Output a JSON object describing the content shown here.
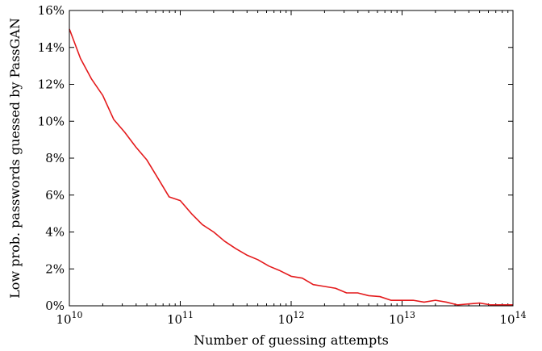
{
  "chart_data": {
    "type": "line",
    "title": "",
    "xlabel": "Number of guessing attempts",
    "ylabel": "Low prob. passwords guessed by PassGAN",
    "x_scale": "log",
    "xlim": [
      10000000000.0,
      100000000000000.0
    ],
    "ylim": [
      0,
      16
    ],
    "x_ticks": [
      {
        "base": "10",
        "exp": "10",
        "value": 10000000000.0
      },
      {
        "base": "10",
        "exp": "11",
        "value": 100000000000.0
      },
      {
        "base": "10",
        "exp": "12",
        "value": 1000000000000.0
      },
      {
        "base": "10",
        "exp": "13",
        "value": 10000000000000.0
      },
      {
        "base": "10",
        "exp": "14",
        "value": 100000000000000.0
      }
    ],
    "y_ticks": [
      {
        "label": "0%",
        "value": 0
      },
      {
        "label": "2%",
        "value": 2
      },
      {
        "label": "4%",
        "value": 4
      },
      {
        "label": "6%",
        "value": 6
      },
      {
        "label": "8%",
        "value": 8
      },
      {
        "label": "10%",
        "value": 10
      },
      {
        "label": "12%",
        "value": 12
      },
      {
        "label": "14%",
        "value": 14
      },
      {
        "label": "16%",
        "value": 16
      }
    ],
    "grid": false,
    "line_color": "#e41a1c",
    "series": [
      {
        "x": [
          10000000000.0,
          12600000000.0,
          15800000000.0,
          20000000000.0,
          25100000000.0,
          31600000000.0,
          39800000000.0,
          50000000000.0,
          63100000000.0,
          79400000000.0,
          100000000000.0,
          126000000000.0,
          158000000000.0,
          200000000000.0,
          251000000000.0,
          316000000000.0,
          398000000000.0,
          500000000000.0,
          631000000000.0,
          794000000000.0,
          1000000000000.0,
          1260000000000.0,
          1580000000000.0,
          2000000000000.0,
          2510000000000.0,
          3160000000000.0,
          3980000000000.0,
          5000000000000.0,
          6310000000000.0,
          7940000000000.0,
          10000000000000.0,
          12600000000000.0,
          15800000000000.0,
          20000000000000.0,
          25100000000000.0,
          31600000000000.0,
          39800000000000.0,
          50000000000000.0,
          63100000000000.0,
          79400000000000.0,
          100000000000000.0
        ],
        "y": [
          15.0,
          13.4,
          12.3,
          11.4,
          10.1,
          9.4,
          8.6,
          7.9,
          6.9,
          5.9,
          5.7,
          5.0,
          4.4,
          4.0,
          3.5,
          3.1,
          2.75,
          2.5,
          2.15,
          1.9,
          1.6,
          1.5,
          1.15,
          1.05,
          0.95,
          0.7,
          0.7,
          0.55,
          0.5,
          0.3,
          0.3,
          0.3,
          0.2,
          0.3,
          0.2,
          0.05,
          0.1,
          0.15,
          0.05,
          0.05,
          0.05
        ]
      }
    ]
  }
}
